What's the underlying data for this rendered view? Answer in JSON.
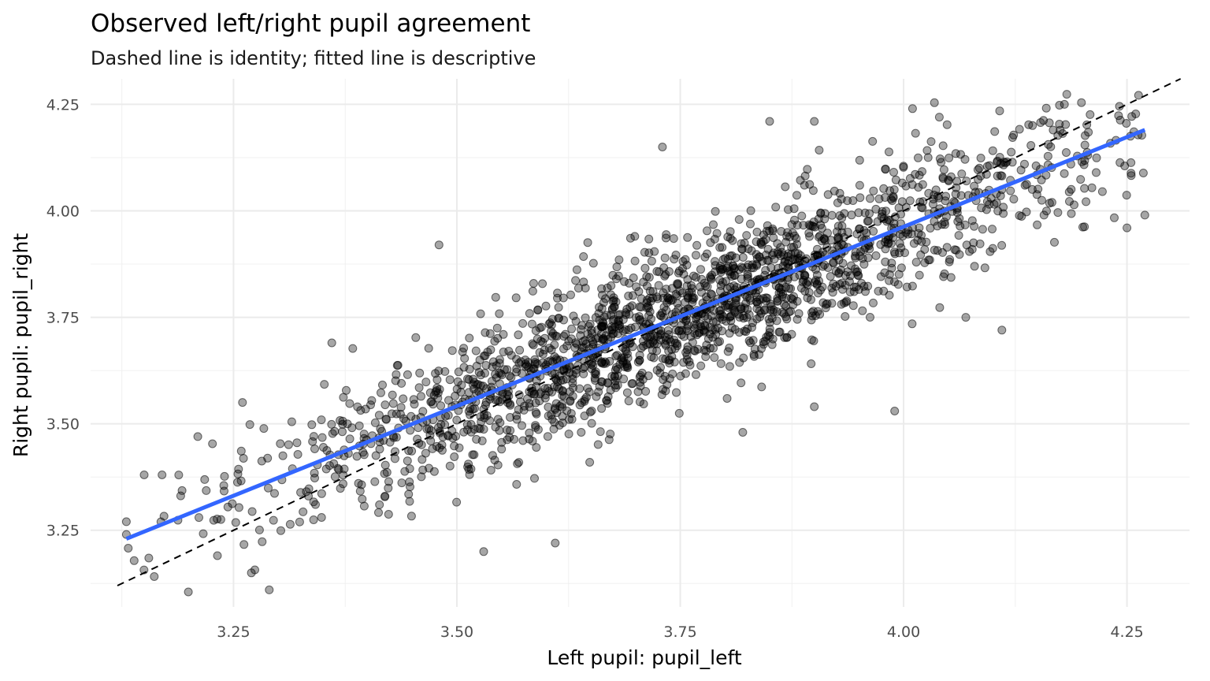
{
  "chart_data": {
    "type": "scatter",
    "title": "Observed left/right pupil agreement",
    "subtitle": "Dashed line is identity; fitted line is descriptive",
    "xlabel": "Left pupil: pupil_left",
    "ylabel": "Right pupil: pupil_right",
    "xlim": [
      3.09,
      4.32
    ],
    "ylim": [
      3.07,
      4.31
    ],
    "x_ticks": [
      "3.25",
      "3.50",
      "3.75",
      "4.00",
      "4.25"
    ],
    "y_ticks": [
      "3.25",
      "3.50",
      "3.75",
      "4.00",
      "4.25"
    ],
    "x_tick_values": [
      3.25,
      3.5,
      3.75,
      4.0,
      4.25
    ],
    "y_tick_values": [
      3.25,
      3.5,
      3.75,
      4.0,
      4.25
    ],
    "grid": true,
    "legend": "none",
    "point_color": "#000000",
    "point_alpha": 0.35,
    "identity_line": {
      "style": "dashed",
      "color": "#000000",
      "intercept": 0,
      "slope": 1
    },
    "fitted_line": {
      "color": "#3366FF",
      "x": [
        3.13,
        4.27
      ],
      "y": [
        3.23,
        4.19
      ]
    },
    "point_cloud": {
      "n_points": 2000,
      "seed": 7,
      "x_center": 3.76,
      "x_sd": 0.24,
      "x_min": 3.13,
      "x_max": 4.27,
      "intercept": 0.6,
      "slope": 0.84,
      "residual_sd": 0.085
    },
    "points_sample": [
      {
        "x": 3.13,
        "y": 3.27
      },
      {
        "x": 3.13,
        "y": 3.24
      },
      {
        "x": 3.15,
        "y": 3.38
      },
      {
        "x": 3.17,
        "y": 3.38
      },
      {
        "x": 3.21,
        "y": 3.47
      },
      {
        "x": 3.26,
        "y": 3.55
      },
      {
        "x": 3.27,
        "y": 3.15
      },
      {
        "x": 3.29,
        "y": 3.11
      },
      {
        "x": 3.36,
        "y": 3.69
      },
      {
        "x": 3.48,
        "y": 3.92
      },
      {
        "x": 3.61,
        "y": 3.22
      },
      {
        "x": 3.73,
        "y": 4.15
      },
      {
        "x": 3.85,
        "y": 4.21
      },
      {
        "x": 3.9,
        "y": 4.21
      },
      {
        "x": 4.01,
        "y": 4.24
      },
      {
        "x": 4.04,
        "y": 4.22
      },
      {
        "x": 4.18,
        "y": 4.25
      },
      {
        "x": 4.27,
        "y": 3.99
      },
      {
        "x": 4.25,
        "y": 3.96
      },
      {
        "x": 4.11,
        "y": 3.72
      },
      {
        "x": 3.99,
        "y": 3.53
      },
      {
        "x": 3.9,
        "y": 3.54
      },
      {
        "x": 3.82,
        "y": 3.48
      },
      {
        "x": 3.53,
        "y": 3.2
      }
    ]
  }
}
